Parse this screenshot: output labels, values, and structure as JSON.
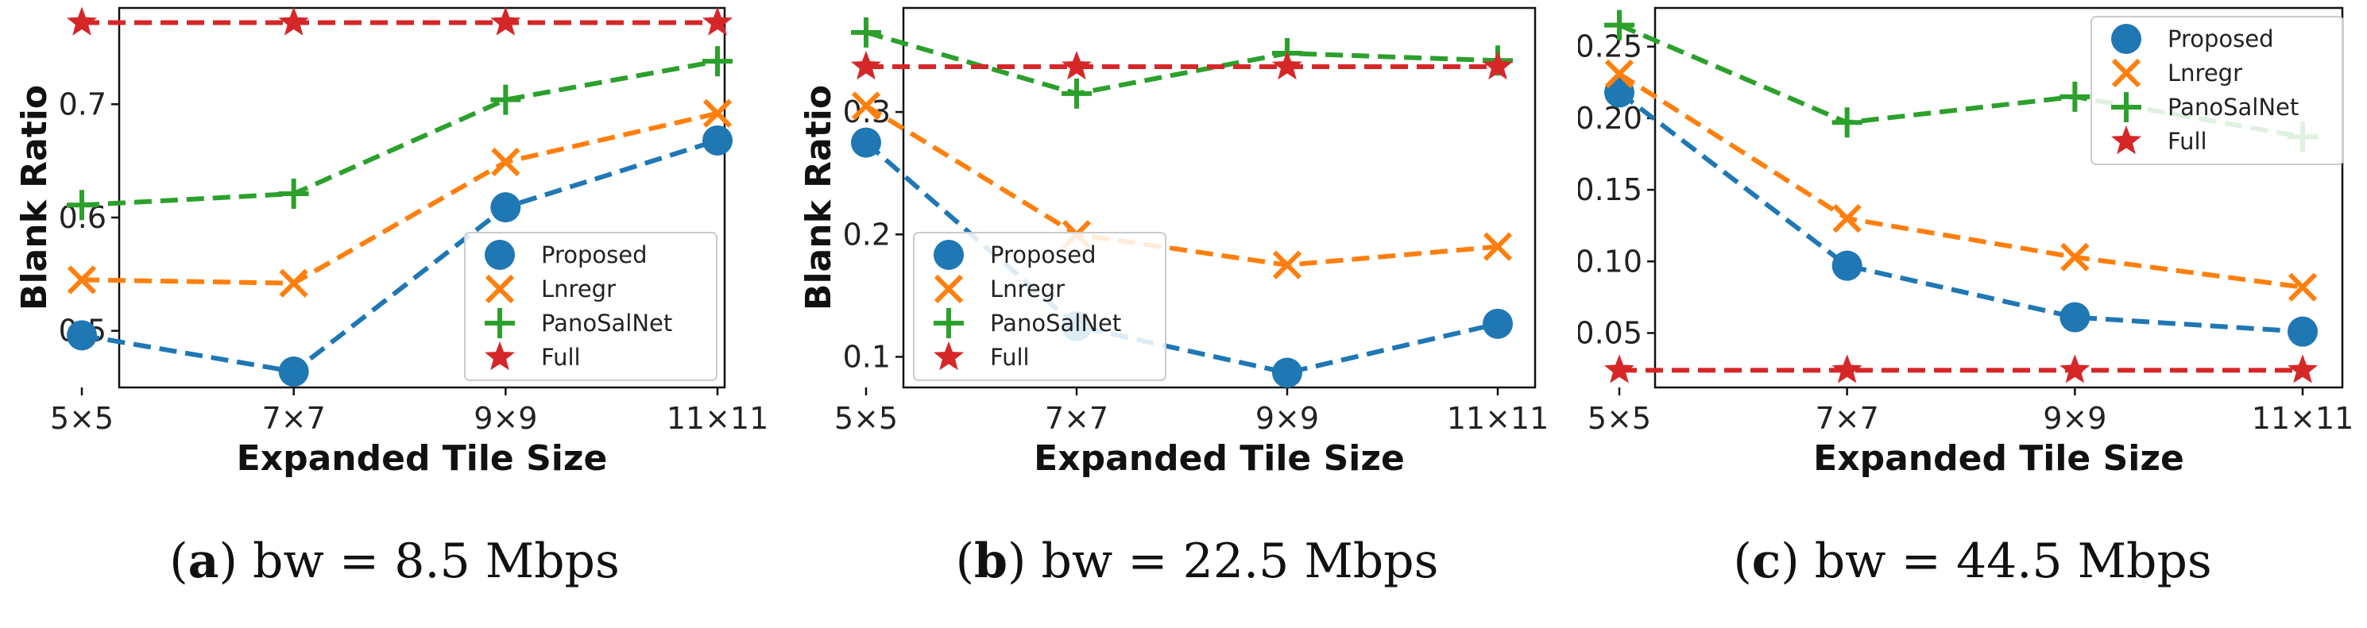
{
  "colors": {
    "Proposed": "#1f77b4",
    "Lnregr": "#ff7f0e",
    "PanoSalNet": "#2ca02c",
    "Full": "#d62728"
  },
  "chart_data": [
    {
      "type": "line",
      "caption_label": "a",
      "caption_text": "bw = 8.5 Mbps",
      "xlabel": "Expanded Tile Size",
      "ylabel": "Blank Ratio",
      "categories": [
        "5×5",
        "7×7",
        "9×9",
        "11×11"
      ],
      "ylim": [
        0.45,
        0.785
      ],
      "yticks": [
        0.5,
        0.6,
        0.7
      ],
      "ytick_labels": [
        "0.5",
        "0.6",
        "0.7"
      ],
      "legend_position": "lower-right",
      "series": [
        {
          "name": "Proposed",
          "values": [
            0.496,
            0.464,
            0.609,
            0.668
          ]
        },
        {
          "name": "Lnregr",
          "values": [
            0.545,
            0.542,
            0.649,
            0.692
          ]
        },
        {
          "name": "PanoSalNet",
          "values": [
            0.611,
            0.621,
            0.704,
            0.738
          ]
        },
        {
          "name": "Full",
          "values": [
            0.772,
            0.772,
            0.772,
            0.772
          ]
        }
      ]
    },
    {
      "type": "line",
      "caption_label": "b",
      "caption_text": "bw = 22.5 Mbps",
      "xlabel": "Expanded Tile Size",
      "ylabel": "Blank Ratio",
      "categories": [
        "5×5",
        "7×7",
        "9×9",
        "11×11"
      ],
      "ylim": [
        0.075,
        0.385
      ],
      "yticks": [
        0.1,
        0.2,
        0.3
      ],
      "ytick_labels": [
        "0.1",
        "0.2",
        "0.3"
      ],
      "legend_position": "lower-left",
      "series": [
        {
          "name": "Proposed",
          "values": [
            0.275,
            0.125,
            0.087,
            0.127
          ]
        },
        {
          "name": "Lnregr",
          "values": [
            0.305,
            0.2,
            0.175,
            0.19
          ]
        },
        {
          "name": "PanoSalNet",
          "values": [
            0.365,
            0.315,
            0.348,
            0.342
          ]
        },
        {
          "name": "Full",
          "values": [
            0.337,
            0.337,
            0.337,
            0.337
          ]
        }
      ]
    },
    {
      "type": "line",
      "caption_label": "c",
      "caption_text": "bw = 44.5 Mbps",
      "xlabel": "Expanded Tile Size",
      "ylabel": "Blank Ratio",
      "categories": [
        "5×5",
        "7×7",
        "9×9",
        "11×11"
      ],
      "ylim": [
        0.012,
        0.277
      ],
      "yticks": [
        0.05,
        0.1,
        0.15,
        0.2,
        0.25
      ],
      "ytick_labels": [
        "0.05",
        "0.10",
        "0.15",
        "0.20",
        "0.25"
      ],
      "legend_position": "upper-right",
      "series": [
        {
          "name": "Proposed",
          "values": [
            0.218,
            0.097,
            0.061,
            0.051
          ]
        },
        {
          "name": "Lnregr",
          "values": [
            0.231,
            0.13,
            0.103,
            0.082
          ]
        },
        {
          "name": "PanoSalNet",
          "values": [
            0.265,
            0.197,
            0.215,
            0.187
          ]
        },
        {
          "name": "Full",
          "values": [
            0.024,
            0.024,
            0.024,
            0.024
          ]
        }
      ]
    }
  ]
}
